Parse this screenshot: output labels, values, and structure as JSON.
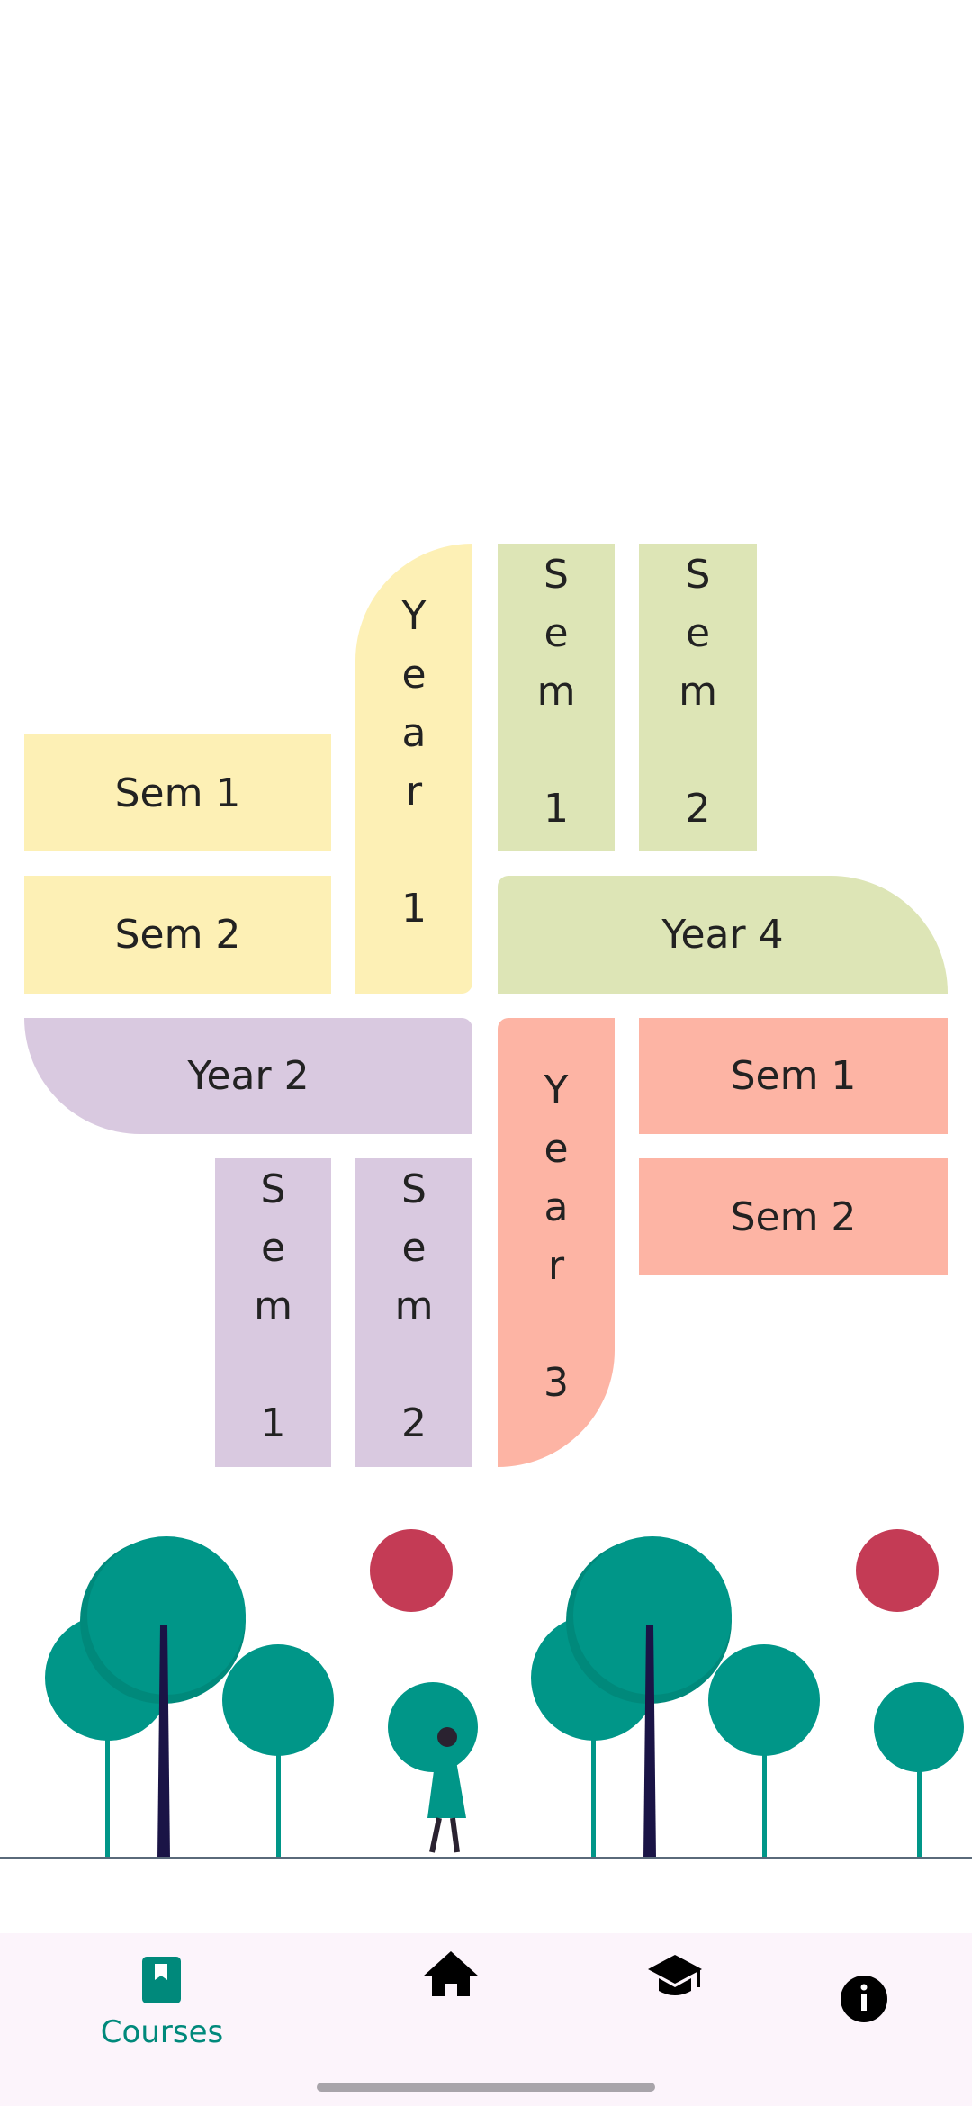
{
  "years": [
    {
      "label": "Year 1",
      "sems": [
        "Sem 1",
        "Sem 2"
      ]
    },
    {
      "label": "Year 2",
      "sems": [
        "Sem 1",
        "Sem 2"
      ]
    },
    {
      "label": "Year 3",
      "sems": [
        "Sem 1",
        "Sem 2"
      ]
    },
    {
      "label": "Year 4",
      "sems": [
        "Sem 1",
        "Sem 2"
      ]
    }
  ],
  "nav": {
    "active": "Courses"
  }
}
